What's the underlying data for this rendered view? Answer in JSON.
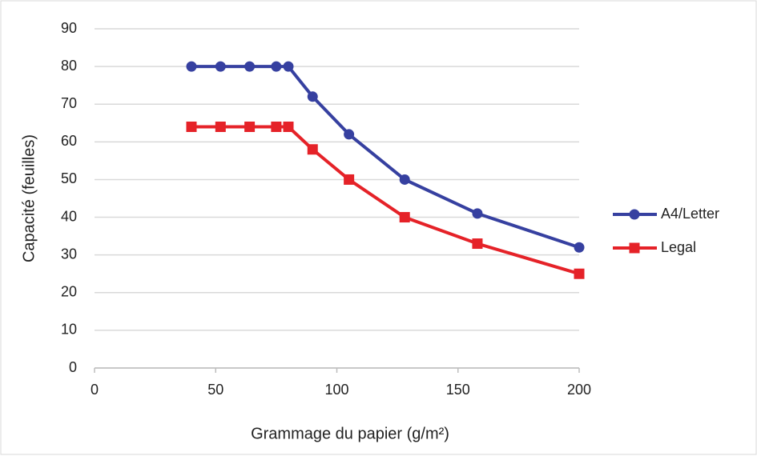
{
  "chart_data": {
    "type": "line",
    "x_label": "Grammage du papier (g/m²)",
    "y_label": "Capacité (feuilles)",
    "x": [
      40,
      52,
      64,
      75,
      80,
      90,
      105,
      128,
      158,
      200
    ],
    "series": [
      {
        "name": "A4/Letter",
        "color": "#3640a0",
        "marker": "circle",
        "values": [
          80,
          80,
          80,
          80,
          80,
          72,
          62,
          50,
          41,
          32
        ]
      },
      {
        "name": "Legal",
        "color": "#e52228",
        "marker": "square",
        "values": [
          64,
          64,
          64,
          64,
          64,
          58,
          50,
          40,
          33,
          25
        ]
      }
    ],
    "xlim": [
      0,
      200
    ],
    "xticks": [
      0,
      50,
      100,
      150,
      200
    ],
    "ylim": [
      0,
      90
    ],
    "yticks": [
      0,
      10,
      20,
      30,
      40,
      50,
      60,
      70,
      80,
      90
    ],
    "grid": true,
    "legend": "right"
  }
}
